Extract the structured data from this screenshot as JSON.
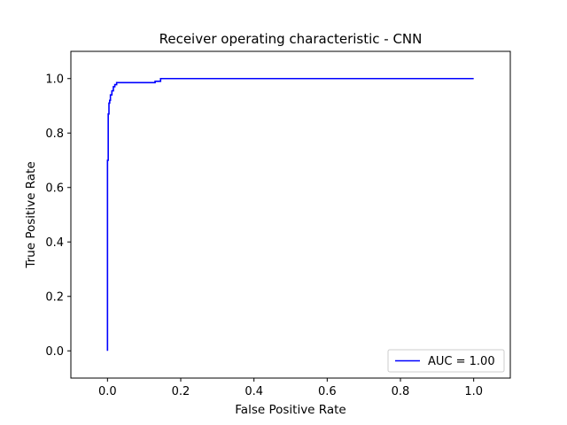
{
  "chart_data": {
    "type": "line",
    "title": "Receiver operating characteristic - CNN",
    "xlabel": "False Positive Rate",
    "ylabel": "True Positive Rate",
    "xlim": [
      -0.1,
      1.1
    ],
    "ylim": [
      -0.1,
      1.1
    ],
    "xticks": [
      0.0,
      0.2,
      0.4,
      0.6,
      0.8,
      1.0
    ],
    "xtick_labels": [
      "0.0",
      "0.2",
      "0.4",
      "0.6",
      "0.8",
      "1.0"
    ],
    "yticks": [
      0.0,
      0.2,
      0.4,
      0.6,
      0.8,
      1.0
    ],
    "ytick_labels": [
      "0.0",
      "0.2",
      "0.4",
      "0.6",
      "0.8",
      "1.0"
    ],
    "grid": false,
    "legend_position": "lower-right",
    "series": [
      {
        "name": "AUC = 1.00",
        "color": "#0000ff",
        "x": [
          0.0,
          0.0,
          0.002,
          0.002,
          0.004,
          0.004,
          0.006,
          0.006,
          0.008,
          0.008,
          0.012,
          0.012,
          0.016,
          0.016,
          0.02,
          0.02,
          0.025,
          0.025,
          0.13,
          0.13,
          0.145,
          0.145,
          1.0
        ],
        "y": [
          0.0,
          0.7,
          0.7,
          0.87,
          0.87,
          0.91,
          0.91,
          0.92,
          0.92,
          0.94,
          0.94,
          0.955,
          0.955,
          0.97,
          0.97,
          0.978,
          0.978,
          0.985,
          0.985,
          0.99,
          0.99,
          1.0,
          1.0
        ]
      }
    ]
  }
}
